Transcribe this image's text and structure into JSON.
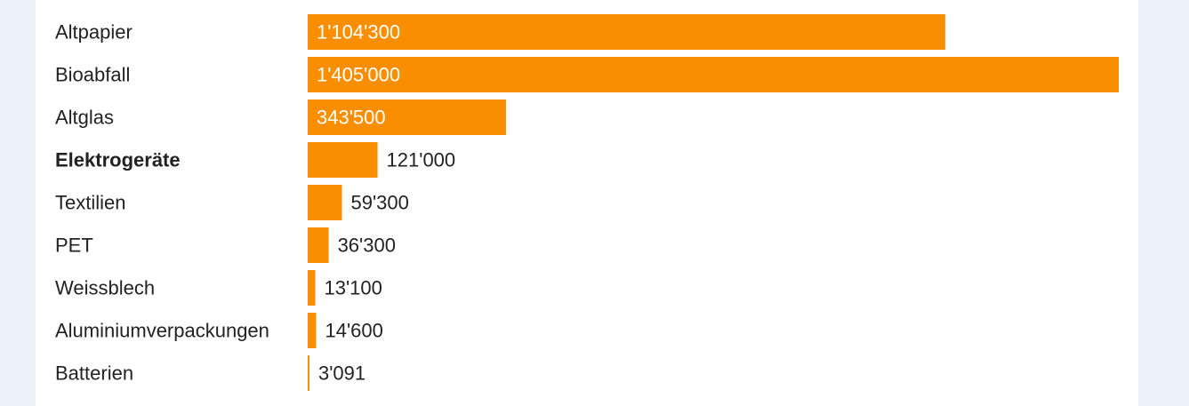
{
  "chart_data": {
    "type": "bar",
    "orientation": "horizontal",
    "title": "",
    "xlabel": "",
    "ylabel": "",
    "categories": [
      "Altpapier",
      "Bioabfall",
      "Altglas",
      "Elektrogeräte",
      "Textilien",
      "PET",
      "Weissblech",
      "Aluminiumverpackungen",
      "Batterien"
    ],
    "values": [
      1104300,
      1405000,
      343500,
      121000,
      59300,
      36300,
      13100,
      14600,
      3091
    ],
    "value_labels": [
      "1'104'300",
      "1'405'000",
      "343'500",
      "121'000",
      "59'300",
      "36'300",
      "13'100",
      "14'600",
      "3'091"
    ],
    "highlighted_category": "Elektrogeräte",
    "xlim": [
      0,
      1405000
    ],
    "grid": false,
    "legend": "none",
    "colors": {
      "bar": "#f98e00",
      "label_inside": "#ffffff",
      "label_outside": "#222222",
      "page_background": "#ecf1f9",
      "panel_background": "#ffffff"
    }
  }
}
